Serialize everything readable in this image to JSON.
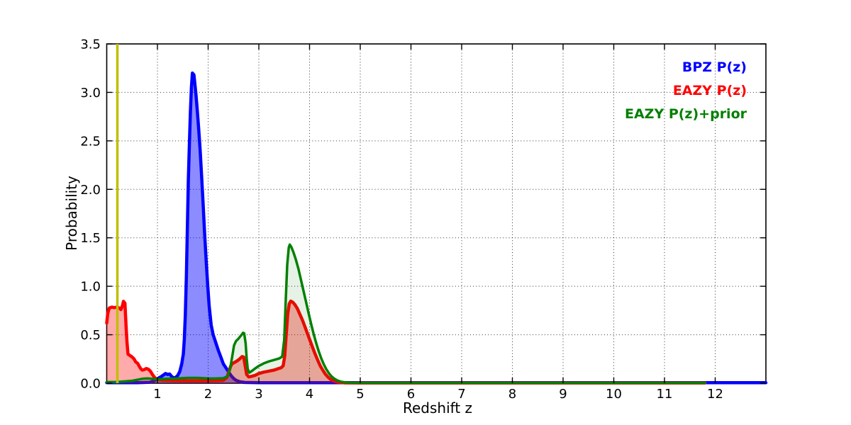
{
  "figure": {
    "background": "#ffffff"
  },
  "chart_data": {
    "type": "line",
    "title": "",
    "xlabel": "Redshift z",
    "ylabel": "Probability",
    "xlim": [
      0,
      13
    ],
    "ylim": [
      0,
      3.5
    ],
    "xticks": [
      1,
      2,
      3,
      4,
      5,
      6,
      7,
      8,
      9,
      10,
      11,
      12
    ],
    "yticks": [
      0,
      0.5,
      1,
      1.5,
      2,
      2.5,
      3,
      3.5
    ],
    "ytick_labels": [
      "0.0",
      "0.5",
      "1.0",
      "1.5",
      "2.0",
      "2.5",
      "3.0",
      "3.5"
    ],
    "grid": "dotted",
    "grid_color": "#000000",
    "axis_color": "#000000",
    "legend_position": "upper right",
    "vline": {
      "x": 0.21,
      "color": "#bfbf00",
      "line_width": 3.5
    },
    "series": [
      {
        "name": "BPZ P(z)",
        "color": "#0000ff",
        "fill_opacity": 0.45,
        "line_width": 4.5,
        "points": [
          [
            0,
            0.006
          ],
          [
            0.6,
            0.006
          ],
          [
            0.85,
            0.01
          ],
          [
            0.92,
            0.02
          ],
          [
            0.98,
            0.04
          ],
          [
            1.03,
            0.055
          ],
          [
            1.08,
            0.07
          ],
          [
            1.12,
            0.085
          ],
          [
            1.16,
            0.1
          ],
          [
            1.2,
            0.09
          ],
          [
            1.24,
            0.095
          ],
          [
            1.28,
            0.07
          ],
          [
            1.32,
            0.055
          ],
          [
            1.36,
            0.06
          ],
          [
            1.4,
            0.08
          ],
          [
            1.44,
            0.12
          ],
          [
            1.48,
            0.2
          ],
          [
            1.51,
            0.3
          ],
          [
            1.53,
            0.45
          ],
          [
            1.55,
            0.7
          ],
          [
            1.57,
            1.1
          ],
          [
            1.59,
            1.6
          ],
          [
            1.61,
            2.1
          ],
          [
            1.63,
            2.45
          ],
          [
            1.65,
            2.8
          ],
          [
            1.67,
            3.05
          ],
          [
            1.69,
            3.2
          ],
          [
            1.72,
            3.18
          ],
          [
            1.74,
            3.08
          ],
          [
            1.76,
            2.98
          ],
          [
            1.78,
            2.85
          ],
          [
            1.81,
            2.65
          ],
          [
            1.84,
            2.42
          ],
          [
            1.87,
            2.15
          ],
          [
            1.9,
            1.85
          ],
          [
            1.93,
            1.55
          ],
          [
            1.96,
            1.28
          ],
          [
            1.99,
            1.02
          ],
          [
            2.02,
            0.8
          ],
          [
            2.06,
            0.6
          ],
          [
            2.1,
            0.5
          ],
          [
            2.15,
            0.42
          ],
          [
            2.2,
            0.34
          ],
          [
            2.25,
            0.27
          ],
          [
            2.3,
            0.2
          ],
          [
            2.35,
            0.16
          ],
          [
            2.4,
            0.12
          ],
          [
            2.45,
            0.08
          ],
          [
            2.5,
            0.05
          ],
          [
            2.55,
            0.03
          ],
          [
            2.62,
            0.015
          ],
          [
            2.72,
            0.008
          ],
          [
            3,
            0.005
          ],
          [
            6,
            0.005
          ],
          [
            13,
            0.005
          ]
        ]
      },
      {
        "name": "EAZY P(z)",
        "color": "#ff0000",
        "fill_opacity": 0.33,
        "line_width": 4.5,
        "points": [
          [
            0,
            0.62
          ],
          [
            0.02,
            0.72
          ],
          [
            0.05,
            0.775
          ],
          [
            0.1,
            0.785
          ],
          [
            0.15,
            0.78
          ],
          [
            0.2,
            0.785
          ],
          [
            0.25,
            0.775
          ],
          [
            0.28,
            0.76
          ],
          [
            0.31,
            0.8
          ],
          [
            0.33,
            0.845
          ],
          [
            0.36,
            0.825
          ],
          [
            0.38,
            0.6
          ],
          [
            0.4,
            0.42
          ],
          [
            0.42,
            0.3
          ],
          [
            0.46,
            0.285
          ],
          [
            0.5,
            0.27
          ],
          [
            0.54,
            0.25
          ],
          [
            0.57,
            0.22
          ],
          [
            0.61,
            0.205
          ],
          [
            0.64,
            0.175
          ],
          [
            0.67,
            0.15
          ],
          [
            0.7,
            0.135
          ],
          [
            0.74,
            0.14
          ],
          [
            0.78,
            0.152
          ],
          [
            0.82,
            0.145
          ],
          [
            0.86,
            0.125
          ],
          [
            0.9,
            0.09
          ],
          [
            0.95,
            0.055
          ],
          [
            1,
            0.04
          ],
          [
            1.1,
            0.03
          ],
          [
            1.3,
            0.027
          ],
          [
            1.6,
            0.025
          ],
          [
            1.9,
            0.025
          ],
          [
            2.2,
            0.028
          ],
          [
            2.3,
            0.03
          ],
          [
            2.37,
            0.06
          ],
          [
            2.41,
            0.12
          ],
          [
            2.44,
            0.17
          ],
          [
            2.47,
            0.2
          ],
          [
            2.52,
            0.215
          ],
          [
            2.57,
            0.23
          ],
          [
            2.61,
            0.245
          ],
          [
            2.64,
            0.26
          ],
          [
            2.67,
            0.275
          ],
          [
            2.7,
            0.27
          ],
          [
            2.73,
            0.18
          ],
          [
            2.76,
            0.09
          ],
          [
            2.8,
            0.065
          ],
          [
            2.85,
            0.07
          ],
          [
            2.92,
            0.08
          ],
          [
            3,
            0.1
          ],
          [
            3.1,
            0.115
          ],
          [
            3.2,
            0.125
          ],
          [
            3.3,
            0.135
          ],
          [
            3.38,
            0.15
          ],
          [
            3.44,
            0.16
          ],
          [
            3.48,
            0.18
          ],
          [
            3.51,
            0.28
          ],
          [
            3.54,
            0.5
          ],
          [
            3.57,
            0.72
          ],
          [
            3.6,
            0.82
          ],
          [
            3.63,
            0.847
          ],
          [
            3.67,
            0.835
          ],
          [
            3.71,
            0.81
          ],
          [
            3.76,
            0.77
          ],
          [
            3.81,
            0.71
          ],
          [
            3.86,
            0.65
          ],
          [
            3.91,
            0.58
          ],
          [
            3.96,
            0.51
          ],
          [
            4.01,
            0.44
          ],
          [
            4.06,
            0.37
          ],
          [
            4.11,
            0.3
          ],
          [
            4.16,
            0.24
          ],
          [
            4.21,
            0.18
          ],
          [
            4.26,
            0.135
          ],
          [
            4.31,
            0.095
          ],
          [
            4.36,
            0.065
          ],
          [
            4.41,
            0.042
          ],
          [
            4.47,
            0.025
          ],
          [
            4.53,
            0.014
          ],
          [
            4.6,
            0.008
          ],
          [
            4.7,
            0.004
          ],
          [
            5,
            0.003
          ],
          [
            11.8,
            0.003
          ]
        ]
      },
      {
        "name": "EAZY P(z)+prior",
        "color": "#008000",
        "fill_opacity": 0.1,
        "line_width": 3.5,
        "points": [
          [
            0,
            0.012
          ],
          [
            0.2,
            0.012
          ],
          [
            0.35,
            0.018
          ],
          [
            0.5,
            0.025
          ],
          [
            0.6,
            0.035
          ],
          [
            0.7,
            0.045
          ],
          [
            0.8,
            0.05
          ],
          [
            0.9,
            0.045
          ],
          [
            1,
            0.04
          ],
          [
            1.2,
            0.045
          ],
          [
            1.4,
            0.05
          ],
          [
            1.6,
            0.055
          ],
          [
            1.8,
            0.055
          ],
          [
            2,
            0.05
          ],
          [
            2.15,
            0.048
          ],
          [
            2.3,
            0.052
          ],
          [
            2.38,
            0.07
          ],
          [
            2.43,
            0.14
          ],
          [
            2.47,
            0.26
          ],
          [
            2.51,
            0.39
          ],
          [
            2.55,
            0.435
          ],
          [
            2.59,
            0.455
          ],
          [
            2.63,
            0.48
          ],
          [
            2.66,
            0.5
          ],
          [
            2.69,
            0.52
          ],
          [
            2.71,
            0.515
          ],
          [
            2.74,
            0.41
          ],
          [
            2.76,
            0.26
          ],
          [
            2.78,
            0.15
          ],
          [
            2.81,
            0.108
          ],
          [
            2.86,
            0.125
          ],
          [
            2.92,
            0.15
          ],
          [
            3,
            0.178
          ],
          [
            3.1,
            0.205
          ],
          [
            3.2,
            0.225
          ],
          [
            3.3,
            0.24
          ],
          [
            3.4,
            0.255
          ],
          [
            3.46,
            0.275
          ],
          [
            3.5,
            0.45
          ],
          [
            3.53,
            0.85
          ],
          [
            3.56,
            1.22
          ],
          [
            3.59,
            1.4
          ],
          [
            3.61,
            1.43
          ],
          [
            3.64,
            1.405
          ],
          [
            3.68,
            1.355
          ],
          [
            3.73,
            1.275
          ],
          [
            3.78,
            1.18
          ],
          [
            3.83,
            1.07
          ],
          [
            3.88,
            0.955
          ],
          [
            3.93,
            0.84
          ],
          [
            3.98,
            0.725
          ],
          [
            4.03,
            0.615
          ],
          [
            4.08,
            0.51
          ],
          [
            4.13,
            0.415
          ],
          [
            4.18,
            0.33
          ],
          [
            4.23,
            0.258
          ],
          [
            4.28,
            0.196
          ],
          [
            4.33,
            0.145
          ],
          [
            4.38,
            0.104
          ],
          [
            4.43,
            0.072
          ],
          [
            4.49,
            0.046
          ],
          [
            4.55,
            0.028
          ],
          [
            4.62,
            0.016
          ],
          [
            4.7,
            0.009
          ],
          [
            4.8,
            0.005
          ],
          [
            5,
            0.004
          ],
          [
            11.8,
            0.004
          ]
        ]
      }
    ]
  }
}
